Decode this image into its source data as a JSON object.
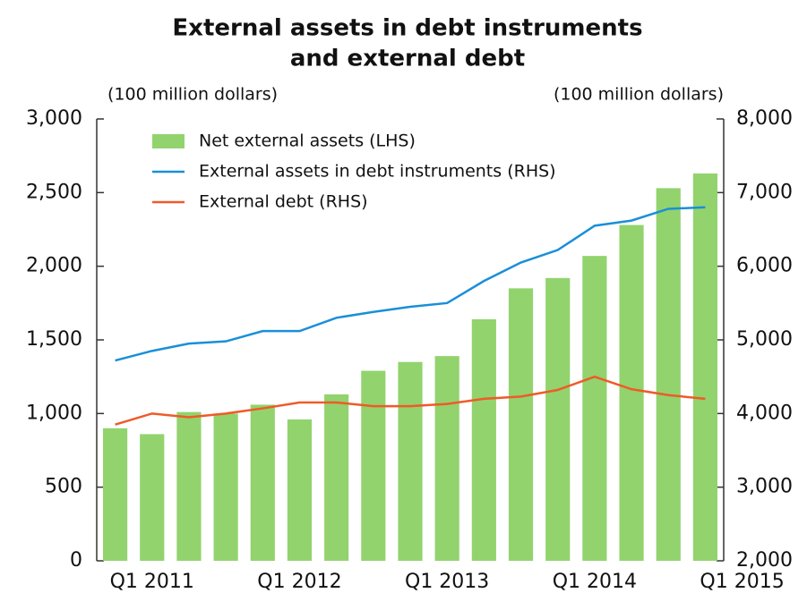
{
  "chart_data": {
    "type": "bar",
    "title": [
      "External assets in debt instruments",
      "and external debt"
    ],
    "y_label": "(100 million dollars)",
    "y2_label": "(100 million dollars)",
    "categories": [
      "Q1 2011",
      null,
      null,
      null,
      "Q1 2012",
      null,
      null,
      null,
      "Q1 2013",
      null,
      null,
      null,
      "Q1 2014",
      null,
      null,
      null,
      "Q1 2015"
    ],
    "series": [
      {
        "name": "Net external assets (LHS)",
        "type": "bar",
        "color": "#92d36e",
        "values": [
          900,
          860,
          1010,
          1000,
          1060,
          960,
          1130,
          1290,
          1350,
          1390,
          1640,
          1850,
          1920,
          2070,
          2280,
          2530,
          2630
        ]
      },
      {
        "name": "External assets in debt instruments (RHS)",
        "type": "line",
        "axis": "y2",
        "color": "#1a8fd8",
        "values": [
          4720,
          4850,
          4950,
          4980,
          5120,
          5120,
          5300,
          5380,
          5450,
          5500,
          5800,
          6050,
          6220,
          6550,
          6620,
          6780,
          6800
        ]
      },
      {
        "name": "External debt (RHS)",
        "type": "line",
        "axis": "y2",
        "color": "#f05a28",
        "values": [
          3850,
          4000,
          3950,
          4000,
          4070,
          4150,
          4150,
          4100,
          4100,
          4130,
          4200,
          4230,
          4320,
          4500,
          4330,
          4250,
          4200
        ]
      }
    ],
    "ylim": [
      0,
      3000
    ],
    "yticks": [
      0,
      500,
      {
        "value": 1000,
        "label": "1,000"
      },
      {
        "value": 1500,
        "label": "1,500"
      },
      {
        "value": 2000,
        "label": "2,000"
      },
      {
        "value": 2500,
        "label": "2,500"
      },
      {
        "value": 3000,
        "label": "3,000"
      }
    ],
    "y2lim": [
      2000,
      8000
    ],
    "y2ticks": [
      {
        "value": 2000,
        "label": "2,000"
      },
      {
        "value": 3000,
        "label": "3,000"
      },
      {
        "value": 4000,
        "label": "4,000"
      },
      {
        "value": 5000,
        "label": "5,000"
      },
      {
        "value": 6000,
        "label": "6,000"
      },
      {
        "value": 7000,
        "label": "7,000"
      },
      {
        "value": 8000,
        "label": "8,000"
      }
    ],
    "legend": "upper left"
  }
}
